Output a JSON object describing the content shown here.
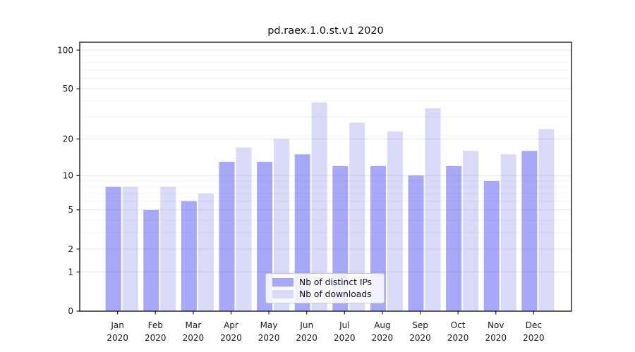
{
  "title": "pd.raex.1.0.st.v1 2020",
  "chart_data": {
    "type": "bar",
    "title": "pd.raex.1.0.st.v1 2020",
    "categories": [
      "Jan",
      "Feb",
      "Mar",
      "Apr",
      "May",
      "Jun",
      "Jul",
      "Aug",
      "Sep",
      "Oct",
      "Nov",
      "Dec"
    ],
    "year_label": "2020",
    "series": [
      {
        "name": "Nb of distinct IPs",
        "color": "#a8a8fa",
        "values": [
          8,
          5,
          6,
          13,
          13,
          15,
          12,
          12,
          10,
          12,
          9,
          16
        ]
      },
      {
        "name": "Nb of downloads",
        "color": "#d9d9f8",
        "values": [
          8,
          8,
          7,
          17,
          20,
          39,
          27,
          23,
          35,
          16,
          15,
          24
        ]
      }
    ],
    "yscale": "log1p",
    "ylim": [
      0,
      115
    ],
    "yticks": [
      0,
      1,
      2,
      5,
      10,
      20,
      50,
      100
    ],
    "minor_yticks": [
      3,
      4,
      6,
      7,
      8,
      9,
      30,
      40,
      60,
      70,
      80,
      90
    ],
    "grid": true,
    "legend_position": "lower center",
    "xlabel": "",
    "ylabel": "",
    "axis_color": "#1a1a1a",
    "text_color": "#1a1a1a"
  }
}
